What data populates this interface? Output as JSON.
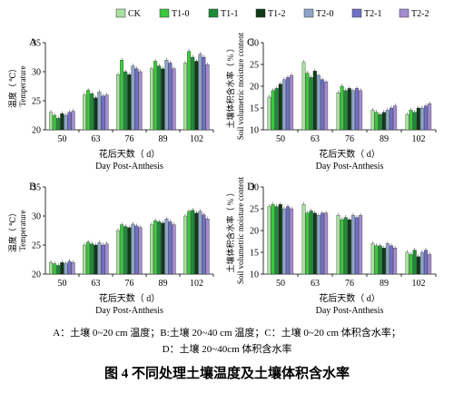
{
  "legend": [
    "CK",
    "T1-0",
    "T1-1",
    "T1-2",
    "T2-0",
    "T2-1",
    "T2-2"
  ],
  "colors": {
    "CK": "#a8e0a0",
    "T1-0": "#3cc83c",
    "T1-1": "#1e8a3a",
    "T1-2": "#103a18",
    "T2-0": "#8ea4c8",
    "T2-1": "#7070c8",
    "T2-2": "#a48cd0"
  },
  "caption": {
    "line1": "A：土壤 0~20 cm  温度；B:土壤 20~40 cm  温度；C：土壤 0~20 cm  体积含水率；",
    "line2": "D：土壤 20~40cm  体积含水率",
    "title": "图 4  不同处理土壤温度及土壤体积含水率"
  },
  "chart_data": [
    {
      "type": "bar",
      "panel": "A",
      "categories": [
        "50",
        "63",
        "76",
        "89",
        "102"
      ],
      "xlabel_cn": "花后天数（ d）",
      "xlabel_en": "Day Post-Anthesis",
      "ylabel_cn": "温度（ ℃）",
      "ylabel_en": "Temperature",
      "ylim": [
        20,
        35
      ],
      "yticks": [
        20,
        25,
        30,
        35
      ],
      "series": [
        {
          "name": "CK",
          "values": [
            23.0,
            26.0,
            29.5,
            30.5,
            31.5
          ]
        },
        {
          "name": "T1-0",
          "values": [
            22.5,
            26.8,
            32.0,
            31.8,
            33.5
          ]
        },
        {
          "name": "T1-1",
          "values": [
            22.0,
            26.2,
            30.0,
            31.0,
            32.5
          ]
        },
        {
          "name": "T1-2",
          "values": [
            22.8,
            25.5,
            29.5,
            30.5,
            31.8
          ]
        },
        {
          "name": "T2-0",
          "values": [
            22.5,
            26.5,
            31.0,
            32.0,
            33.0
          ]
        },
        {
          "name": "T2-1",
          "values": [
            23.0,
            25.8,
            30.5,
            31.5,
            32.5
          ]
        },
        {
          "name": "T2-2",
          "values": [
            23.2,
            26.0,
            30.0,
            30.5,
            31.2
          ]
        }
      ]
    },
    {
      "type": "bar",
      "panel": "B",
      "categories": [
        "50",
        "63",
        "76",
        "89",
        "102"
      ],
      "xlabel_cn": "花后天数（ d）",
      "xlabel_en": "Day Post-Anthesis",
      "ylabel_cn": "温度（ ℃）",
      "ylabel_en": "Temperature",
      "ylim": [
        20,
        35
      ],
      "yticks": [
        20,
        25,
        30,
        35
      ],
      "series": [
        {
          "name": "CK",
          "values": [
            22.0,
            25.0,
            27.5,
            28.5,
            30.0
          ]
        },
        {
          "name": "T1-0",
          "values": [
            21.8,
            25.5,
            28.5,
            29.2,
            30.8
          ]
        },
        {
          "name": "T1-1",
          "values": [
            21.5,
            25.2,
            28.2,
            29.0,
            31.0
          ]
        },
        {
          "name": "T1-2",
          "values": [
            22.0,
            25.0,
            28.0,
            28.8,
            30.5
          ]
        },
        {
          "name": "T2-0",
          "values": [
            21.8,
            25.4,
            28.6,
            29.5,
            30.8
          ]
        },
        {
          "name": "T2-1",
          "values": [
            22.2,
            25.0,
            28.3,
            29.0,
            30.2
          ]
        },
        {
          "name": "T2-2",
          "values": [
            22.0,
            25.2,
            28.0,
            28.5,
            29.5
          ]
        }
      ]
    },
    {
      "type": "bar",
      "panel": "C",
      "categories": [
        "50",
        "63",
        "76",
        "89",
        "102"
      ],
      "xlabel_cn": "花后天数（ d）",
      "xlabel_en": "Day Post-Anthesis",
      "ylabel_cn": "土壤体积含水率（ % ）",
      "ylabel_en": "Soil volumetric moisture content",
      "ylim": [
        10,
        30
      ],
      "yticks": [
        10,
        15,
        20,
        25,
        30
      ],
      "series": [
        {
          "name": "CK",
          "values": [
            17.5,
            25.5,
            18.5,
            14.5,
            13.5
          ]
        },
        {
          "name": "T1-0",
          "values": [
            19.0,
            23.0,
            20.0,
            14.0,
            14.5
          ]
        },
        {
          "name": "T1-1",
          "values": [
            19.5,
            22.0,
            19.0,
            13.5,
            14.0
          ]
        },
        {
          "name": "T1-2",
          "values": [
            20.5,
            23.5,
            19.5,
            14.0,
            15.0
          ]
        },
        {
          "name": "T2-0",
          "values": [
            21.5,
            22.5,
            19.0,
            14.5,
            15.0
          ]
        },
        {
          "name": "T2-1",
          "values": [
            22.0,
            21.5,
            19.5,
            15.0,
            15.5
          ]
        },
        {
          "name": "T2-2",
          "values": [
            22.5,
            21.0,
            19.0,
            15.5,
            16.0
          ]
        }
      ]
    },
    {
      "type": "bar",
      "panel": "D",
      "categories": [
        "50",
        "63",
        "76",
        "89",
        "102"
      ],
      "xlabel_cn": "花后天数（ d）",
      "xlabel_en": "Day Post-Anthesis",
      "ylabel_cn": "土壤体积含水率（ % ）",
      "ylabel_en": "Soil volumetric moisture content",
      "ylim": [
        10,
        30
      ],
      "yticks": [
        10,
        15,
        20,
        25,
        30
      ],
      "series": [
        {
          "name": "CK",
          "values": [
            25.5,
            26.0,
            23.5,
            17.0,
            15.0
          ]
        },
        {
          "name": "T1-0",
          "values": [
            26.0,
            24.0,
            22.5,
            16.5,
            14.5
          ]
        },
        {
          "name": "T1-1",
          "values": [
            25.5,
            24.5,
            23.0,
            16.5,
            15.5
          ]
        },
        {
          "name": "T1-2",
          "values": [
            26.0,
            24.0,
            22.5,
            16.0,
            14.0
          ]
        },
        {
          "name": "T2-0",
          "values": [
            25.0,
            23.5,
            23.5,
            17.0,
            15.0
          ]
        },
        {
          "name": "T2-1",
          "values": [
            25.5,
            24.0,
            23.0,
            16.5,
            15.5
          ]
        },
        {
          "name": "T2-2",
          "values": [
            25.0,
            24.0,
            23.5,
            16.0,
            14.5
          ]
        }
      ]
    }
  ]
}
